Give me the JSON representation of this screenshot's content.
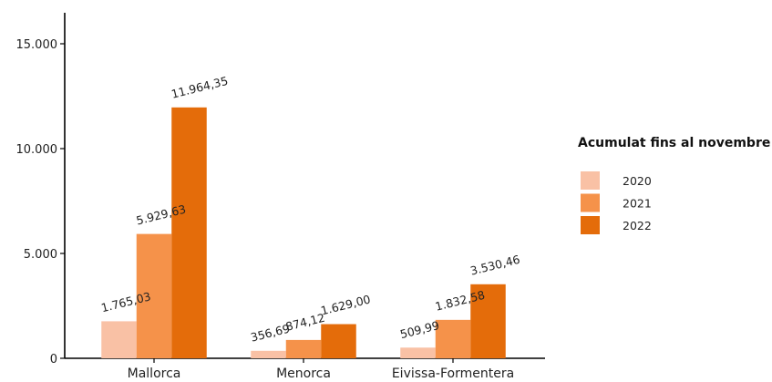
{
  "chart_data": {
    "type": "bar",
    "title": "",
    "xlabel": "",
    "ylabel": "",
    "categories": [
      "Mallorca",
      "Menorca",
      "Eivissa-Formentera"
    ],
    "series": [
      {
        "name": "2020",
        "values": [
          1765.03,
          356.69,
          509.99
        ],
        "labels": [
          "1.765,03",
          "356,69",
          "509,99"
        ],
        "color": "#f9c1a5"
      },
      {
        "name": "2021",
        "values": [
          5929.63,
          874.12,
          1832.58
        ],
        "labels": [
          "5.929,63",
          "874,12",
          "1.832,58"
        ],
        "color": "#f5924a"
      },
      {
        "name": "2022",
        "values": [
          11964.35,
          1629.0,
          3530.46
        ],
        "labels": [
          "11.964,35",
          "1.629,00",
          "3.530,46"
        ],
        "color": "#e46c0a"
      }
    ],
    "ylim": [
      0,
      16000
    ],
    "yticks": [
      0,
      5000,
      10000,
      15000
    ],
    "ytick_labels": [
      "0",
      "5.000",
      "10.000",
      "15.000"
    ],
    "grid": false,
    "legend": {
      "title": "Acumulat fins al novembre",
      "position": "right"
    }
  }
}
